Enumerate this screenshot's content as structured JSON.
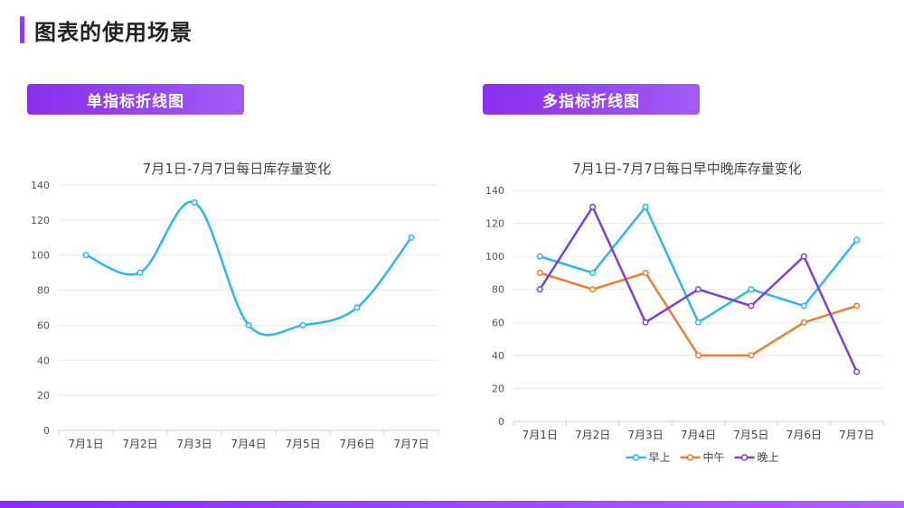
{
  "page": {
    "title": "图表的使用场景",
    "single_section_label": "单指标折线图",
    "multi_section_label": "多指标折线图"
  },
  "colors": {
    "accent": "#8a3ff0",
    "series": [
      "#29b8e8",
      "#ef7d31",
      "#7b3fd9"
    ],
    "grid": "#e8e8e8",
    "axis": "#d0d0d0"
  },
  "chart_data": [
    {
      "type": "line",
      "smooth": true,
      "title": "7月1日-7月7日每日库存量变化",
      "categories": [
        "7月1日",
        "7月2日",
        "7月3日",
        "7月4日",
        "7月5日",
        "7月6日",
        "7月7日"
      ],
      "series": [
        {
          "values": [
            100,
            90,
            130,
            60,
            60,
            70,
            110
          ]
        }
      ],
      "ylim": [
        0,
        140
      ],
      "yticks": [
        0,
        20,
        40,
        60,
        80,
        100,
        120,
        140
      ],
      "grid": true,
      "legend": "none"
    },
    {
      "type": "line",
      "smooth": false,
      "title": "7月1日-7月7日每日早中晚库存量变化",
      "categories": [
        "7月1日",
        "7月2日",
        "7月3日",
        "7月4日",
        "7月5日",
        "7月6日",
        "7月7日"
      ],
      "series": [
        {
          "name": "早上",
          "values": [
            100,
            90,
            130,
            60,
            80,
            70,
            110
          ]
        },
        {
          "name": "中午",
          "values": [
            90,
            80,
            90,
            40,
            40,
            60,
            70
          ]
        },
        {
          "name": "晚上",
          "values": [
            80,
            130,
            60,
            80,
            70,
            100,
            30
          ]
        }
      ],
      "ylim": [
        0,
        140
      ],
      "yticks": [
        0,
        20,
        40,
        60,
        80,
        100,
        120,
        140
      ],
      "grid": true,
      "legend": "bottom"
    }
  ]
}
